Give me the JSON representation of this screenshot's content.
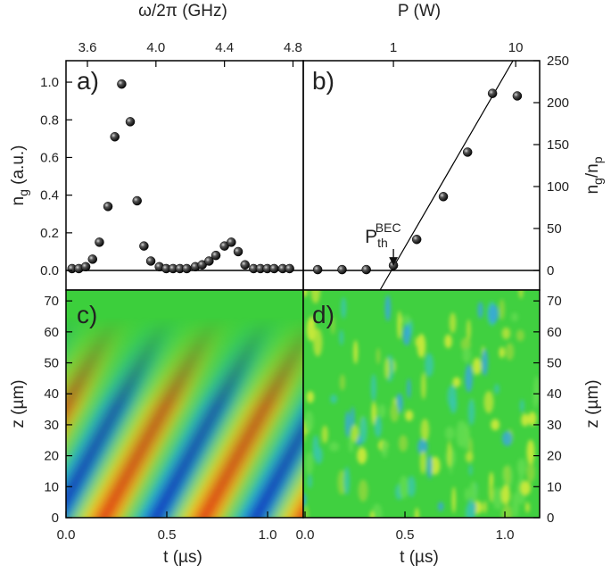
{
  "chart_data": [
    {
      "type": "scatter",
      "panel_label": "a)",
      "xlabel": "ω/2π (GHz)",
      "ylabel": [
        "n",
        "g",
        " (a.u.)"
      ],
      "x": [
        3.51,
        3.55,
        3.59,
        3.63,
        3.67,
        3.72,
        3.76,
        3.8,
        3.85,
        3.89,
        3.93,
        3.97,
        4.02,
        4.06,
        4.1,
        4.14,
        4.18,
        4.23,
        4.27,
        4.31,
        4.35,
        4.4,
        4.44,
        4.48,
        4.52,
        4.57,
        4.61,
        4.65,
        4.69,
        4.74,
        4.78
      ],
      "values": [
        0.01,
        0.01,
        0.02,
        0.06,
        0.15,
        0.34,
        0.71,
        0.99,
        0.79,
        0.37,
        0.13,
        0.05,
        0.02,
        0.01,
        0.01,
        0.01,
        0.01,
        0.02,
        0.03,
        0.05,
        0.08,
        0.13,
        0.15,
        0.1,
        0.03,
        0.01,
        0.01,
        0.01,
        0.01,
        0.01,
        0.01
      ],
      "color": "#000000",
      "xlim": [
        3.475,
        4.86
      ],
      "xticks": [
        3.6,
        {
          "value": 4,
          "label": "4.0"
        },
        4.4,
        4.8
      ],
      "ylim": [
        -0.104,
        1.114
      ],
      "yticks": [
        {
          "value": 0,
          "label": "0.0"
        },
        0.2,
        0.4,
        0.6,
        0.8,
        {
          "value": 1,
          "label": "1.0"
        }
      ],
      "hline": 0
    },
    {
      "type": "scatter",
      "panel_label": "b)",
      "xlabel": "P (W)",
      "ylabel": [
        "n",
        "g",
        "/n",
        "p"
      ],
      "x": [
        0.24,
        0.38,
        0.6,
        1.0,
        1.55,
        2.56,
        4.04,
        6.46,
        10.3
      ],
      "values": [
        1,
        1,
        1,
        6,
        37,
        88,
        141,
        211,
        208
      ],
      "color": "#000000",
      "fit": {
        "x": [
          0.78,
          9.5
        ],
        "values": [
          -23,
          250
        ]
      },
      "annotation": [
        "P",
        "th",
        "BEC"
      ],
      "xlog": true,
      "xlim": [
        0.183,
        15.7
      ],
      "xticks": [
        1,
        10
      ],
      "ylim": [
        -23.4,
        250
      ],
      "yticks": [
        0,
        50,
        100,
        150,
        200,
        250
      ],
      "hline": 0
    },
    {
      "type": "heatmap",
      "panel_label": "c)",
      "xlabel": "t (µs)",
      "ylabel": "z (µm)",
      "xlim": [
        0,
        1.177
      ],
      "xticks": [
        {
          "value": 0,
          "label": "0.0"
        },
        0.5,
        {
          "value": 1,
          "label": "1.0"
        }
      ],
      "ylim": [
        0,
        73.5
      ],
      "yticks": [
        0,
        10,
        20,
        30,
        40,
        50,
        60,
        70
      ]
    },
    {
      "type": "heatmap",
      "panel_label": "d)",
      "xlabel": "t (µs)",
      "ylabel": "z (µm)",
      "xlim": [
        -0.009,
        1.174
      ],
      "xticks": [
        {
          "value": 0,
          "label": "0.0"
        },
        0.5,
        {
          "value": 1,
          "label": "1.0"
        }
      ],
      "ylim": [
        0,
        73.5
      ],
      "yticks": [
        0,
        10,
        20,
        30,
        40,
        50,
        60,
        70
      ]
    }
  ]
}
